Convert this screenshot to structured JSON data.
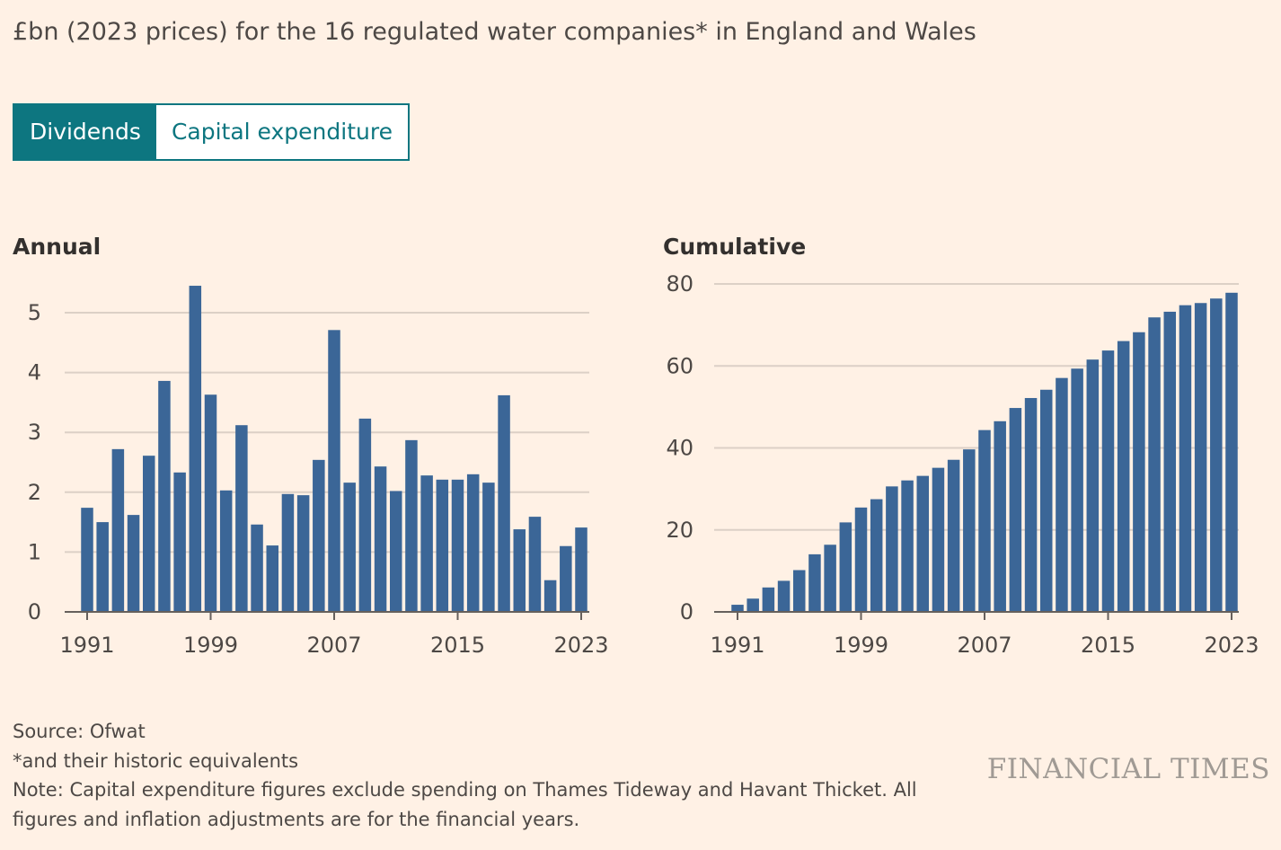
{
  "subtitle": "£bn (2023 prices) for the 16 regulated water companies* in England and Wales",
  "tabs": [
    {
      "label": "Dividends",
      "active": true
    },
    {
      "label": "Capital expenditure",
      "active": false
    }
  ],
  "colors": {
    "background": "#FFF1E5",
    "bar": "#3B6697",
    "tab_accent": "#0D7680",
    "grid": "#DCD0C6"
  },
  "chart_data": [
    {
      "type": "bar",
      "title": "Annual",
      "grid": true,
      "x_ticks": [
        "1991",
        "1999",
        "2007",
        "2015",
        "2023"
      ],
      "y_ticks": [
        0,
        1,
        2,
        3,
        4,
        5
      ],
      "ylim": [
        0,
        5.5
      ],
      "categories": [
        1991,
        1992,
        1993,
        1994,
        1995,
        1996,
        1997,
        1998,
        1999,
        2000,
        2001,
        2002,
        2003,
        2004,
        2005,
        2006,
        2007,
        2008,
        2009,
        2010,
        2011,
        2012,
        2013,
        2014,
        2015,
        2016,
        2017,
        2018,
        2019,
        2020,
        2021,
        2022,
        2023
      ],
      "values": [
        1.74,
        1.5,
        2.72,
        1.62,
        2.61,
        3.86,
        2.33,
        5.45,
        3.63,
        2.03,
        3.12,
        1.46,
        1.11,
        1.97,
        1.95,
        2.54,
        4.71,
        2.16,
        3.23,
        2.43,
        2.02,
        2.87,
        2.28,
        2.21,
        2.21,
        2.3,
        2.16,
        3.62,
        1.38,
        1.59,
        0.53,
        1.1,
        1.41
      ]
    },
    {
      "type": "bar",
      "title": "Cumulative",
      "grid": true,
      "x_ticks": [
        "1991",
        "1999",
        "2007",
        "2015",
        "2023"
      ],
      "y_ticks": [
        0,
        20,
        40,
        60,
        80
      ],
      "ylim": [
        0,
        80
      ],
      "categories": [
        1991,
        1992,
        1993,
        1994,
        1995,
        1996,
        1997,
        1998,
        1999,
        2000,
        2001,
        2002,
        2003,
        2004,
        2005,
        2006,
        2007,
        2008,
        2009,
        2010,
        2011,
        2012,
        2013,
        2014,
        2015,
        2016,
        2017,
        2018,
        2019,
        2020,
        2021,
        2022,
        2023
      ],
      "values": [
        1.74,
        3.24,
        5.96,
        7.58,
        10.19,
        14.05,
        16.38,
        21.83,
        25.46,
        27.49,
        30.61,
        32.07,
        33.18,
        35.15,
        37.1,
        39.64,
        44.35,
        46.51,
        49.74,
        52.17,
        54.19,
        57.06,
        59.34,
        61.55,
        63.76,
        66.06,
        68.22,
        71.84,
        73.22,
        74.81,
        75.34,
        76.44,
        77.85
      ]
    }
  ],
  "footer": {
    "source": "Source: Ofwat",
    "footnote": "*and their historic equivalents",
    "note": "Note: Capital expenditure figures exclude spending on Thames Tideway and Havant Thicket. All figures and inflation adjustments are for the financial years."
  },
  "logo": "FINANCIAL TIMES"
}
